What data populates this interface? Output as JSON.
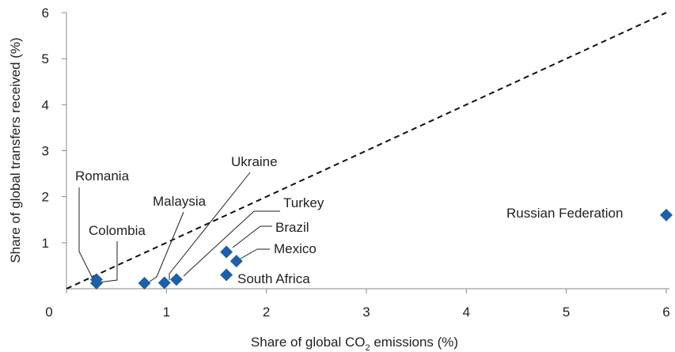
{
  "chart_data": {
    "type": "scatter",
    "xlabel": "Share of global CO",
    "xlabel_sub": "2",
    "xlabel_suffix": " emissions (%)",
    "ylabel": "Share of global transfers received (%)",
    "xlim": [
      0,
      6
    ],
    "ylim": [
      0,
      6
    ],
    "x_ticks": [
      "0",
      "1",
      "2",
      "3",
      "4",
      "5",
      "6"
    ],
    "y_ticks": [
      "1",
      "2",
      "3",
      "4",
      "5",
      "6"
    ],
    "reference_line": {
      "from": [
        0,
        0
      ],
      "to": [
        6,
        6
      ],
      "style": "dashed"
    },
    "marker_color": "#1f5fa8",
    "points": [
      {
        "name": "Romania",
        "x": 0.3,
        "y": 0.2
      },
      {
        "name": "Colombia",
        "x": 0.3,
        "y": 0.12
      },
      {
        "name": "Malaysia",
        "x": 0.78,
        "y": 0.12
      },
      {
        "name": "Ukraine",
        "x": 0.98,
        "y": 0.13
      },
      {
        "name": "Turkey",
        "x": 1.1,
        "y": 0.2
      },
      {
        "name": "Brazil",
        "x": 1.6,
        "y": 0.8
      },
      {
        "name": "Mexico",
        "x": 1.7,
        "y": 0.6
      },
      {
        "name": "South Africa",
        "x": 1.6,
        "y": 0.3
      },
      {
        "name": "Russian Federation",
        "x": 6.0,
        "y": 1.6
      }
    ]
  }
}
